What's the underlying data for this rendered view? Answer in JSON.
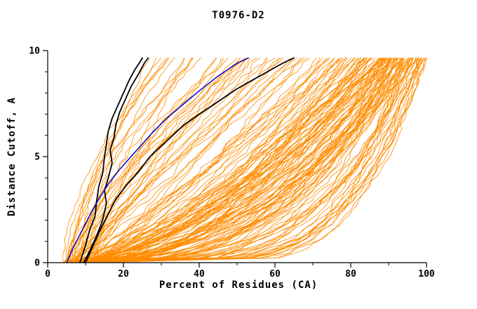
{
  "chart_data": {
    "type": "line",
    "title": "T0976-D2",
    "xlabel": "Percent of Residues (CA)",
    "ylabel": "Distance Cutoff, A",
    "xlim": [
      0,
      100
    ],
    "ylim": [
      0,
      10
    ],
    "xticks": [
      0,
      20,
      40,
      60,
      80,
      100
    ],
    "yticks": [
      0,
      5,
      10
    ],
    "x_minor_step": 10,
    "y_minor_step": 1,
    "colors": {
      "predictions": "#ff8c00",
      "reference": "#000000",
      "highlight": "#0000cc",
      "axis": "#000000",
      "background": "#ffffff"
    },
    "predictions": {
      "count": 160,
      "seed": 42,
      "x_start_range": [
        4,
        13
      ],
      "y_top": 9.65,
      "x_end_buckets": [
        {
          "range": [
            25,
            50
          ],
          "weight": 0.12
        },
        {
          "range": [
            50,
            75
          ],
          "weight": 0.18
        },
        {
          "range": [
            75,
            92
          ],
          "weight": 0.25
        },
        {
          "range": [
            88,
            100
          ],
          "weight": 0.45
        }
      ]
    },
    "reference_series": [
      {
        "name": "black-model-a",
        "color": "#000000",
        "width": 1.8,
        "points": [
          [
            8.5,
            0
          ],
          [
            10,
            0.8
          ],
          [
            11,
            1.5
          ],
          [
            12.5,
            2.2
          ],
          [
            13,
            3.0
          ],
          [
            13.5,
            3.6
          ],
          [
            14.5,
            4.2
          ],
          [
            15,
            5.0
          ],
          [
            15.5,
            5.6
          ],
          [
            16,
            6.2
          ],
          [
            17,
            6.8
          ],
          [
            18.5,
            7.4
          ],
          [
            20,
            8.0
          ],
          [
            21.5,
            8.6
          ],
          [
            23,
            9.1
          ],
          [
            24.5,
            9.5
          ],
          [
            25,
            9.65
          ]
        ]
      },
      {
        "name": "black-model-b",
        "color": "#000000",
        "width": 1.8,
        "points": [
          [
            9.5,
            0
          ],
          [
            11.5,
            0.7
          ],
          [
            13,
            1.3
          ],
          [
            14.5,
            2.0
          ],
          [
            15.5,
            2.8
          ],
          [
            15,
            3.4
          ],
          [
            16,
            4.0
          ],
          [
            17,
            4.7
          ],
          [
            16.5,
            5.3
          ],
          [
            17.5,
            5.9
          ],
          [
            18,
            6.5
          ],
          [
            19,
            7.1
          ],
          [
            20.5,
            7.7
          ],
          [
            22,
            8.3
          ],
          [
            24,
            8.9
          ],
          [
            25.5,
            9.4
          ],
          [
            26.5,
            9.65
          ]
        ]
      },
      {
        "name": "black-model-c",
        "color": "#000000",
        "width": 1.8,
        "points": [
          [
            10,
            0
          ],
          [
            12,
            0.8
          ],
          [
            14,
            1.6
          ],
          [
            16,
            2.3
          ],
          [
            18,
            3.0
          ],
          [
            21,
            3.7
          ],
          [
            24,
            4.3
          ],
          [
            27,
            5.0
          ],
          [
            30,
            5.5
          ],
          [
            33,
            6.0
          ],
          [
            36,
            6.5
          ],
          [
            40,
            7.0
          ],
          [
            45,
            7.6
          ],
          [
            50,
            8.2
          ],
          [
            56,
            8.8
          ],
          [
            62,
            9.4
          ],
          [
            65,
            9.65
          ]
        ]
      },
      {
        "name": "blue-model",
        "color": "#0000cc",
        "width": 1.5,
        "points": [
          [
            5,
            0
          ],
          [
            7,
            0.8
          ],
          [
            9,
            1.5
          ],
          [
            11,
            2.2
          ],
          [
            13.5,
            3.0
          ],
          [
            16,
            3.7
          ],
          [
            19,
            4.4
          ],
          [
            22,
            5.0
          ],
          [
            25,
            5.6
          ],
          [
            28,
            6.2
          ],
          [
            32,
            6.9
          ],
          [
            36,
            7.5
          ],
          [
            40,
            8.1
          ],
          [
            45,
            8.8
          ],
          [
            50,
            9.4
          ],
          [
            53,
            9.65
          ]
        ]
      }
    ]
  }
}
